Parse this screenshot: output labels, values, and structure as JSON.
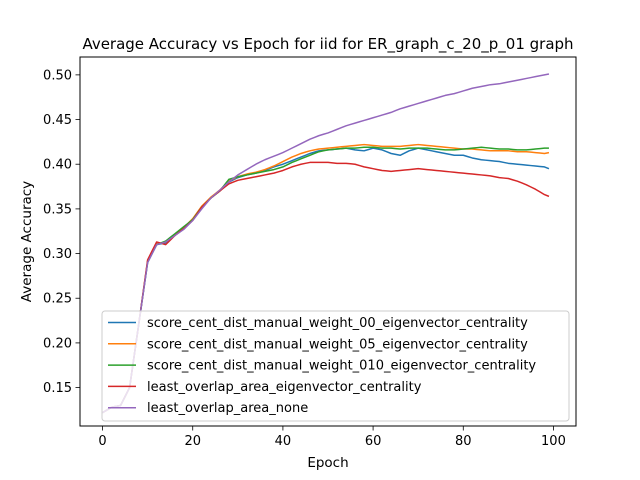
{
  "chart_data": {
    "type": "line",
    "title": "Average Accuracy vs Epoch for iid for ER_graph_c_20_p_01 graph",
    "xlabel": "Epoch",
    "ylabel": "Average Accuracy",
    "xlim": [
      -5,
      105
    ],
    "ylim": [
      0.107,
      0.52
    ],
    "xticks": [
      0,
      20,
      40,
      60,
      80,
      100
    ],
    "yticks": [
      0.15,
      0.2,
      0.25,
      0.3,
      0.35,
      0.4,
      0.45,
      0.5
    ],
    "xtick_labels": [
      "0",
      "20",
      "40",
      "60",
      "80",
      "100"
    ],
    "ytick_labels": [
      "0.15",
      "0.20",
      "0.25",
      "0.30",
      "0.35",
      "0.40",
      "0.45",
      "0.50"
    ],
    "grid": false,
    "legend_position": "lower-left",
    "x_range": {
      "start": 0,
      "end": 99,
      "step": 1
    },
    "series": [
      {
        "name": "score_cent_dist_manual_weight_00_eigenvector_centrality",
        "color": "#1f77b4",
        "keypoints": [
          [
            0,
            0.122
          ],
          [
            2,
            0.128
          ],
          [
            4,
            0.13
          ],
          [
            6,
            0.15
          ],
          [
            8,
            0.22
          ],
          [
            10,
            0.29
          ],
          [
            12,
            0.31
          ],
          [
            14,
            0.312
          ],
          [
            16,
            0.32
          ],
          [
            18,
            0.328
          ],
          [
            20,
            0.338
          ],
          [
            22,
            0.352
          ],
          [
            24,
            0.362
          ],
          [
            26,
            0.37
          ],
          [
            28,
            0.38
          ],
          [
            30,
            0.385
          ],
          [
            32,
            0.388
          ],
          [
            34,
            0.39
          ],
          [
            36,
            0.393
          ],
          [
            38,
            0.397
          ],
          [
            40,
            0.4
          ],
          [
            42,
            0.404
          ],
          [
            44,
            0.408
          ],
          [
            46,
            0.412
          ],
          [
            48,
            0.415
          ],
          [
            50,
            0.416
          ],
          [
            52,
            0.417
          ],
          [
            54,
            0.418
          ],
          [
            56,
            0.416
          ],
          [
            58,
            0.415
          ],
          [
            60,
            0.418
          ],
          [
            62,
            0.416
          ],
          [
            64,
            0.412
          ],
          [
            66,
            0.41
          ],
          [
            68,
            0.415
          ],
          [
            70,
            0.418
          ],
          [
            72,
            0.416
          ],
          [
            74,
            0.414
          ],
          [
            76,
            0.412
          ],
          [
            78,
            0.41
          ],
          [
            80,
            0.41
          ],
          [
            82,
            0.407
          ],
          [
            84,
            0.405
          ],
          [
            86,
            0.404
          ],
          [
            88,
            0.403
          ],
          [
            90,
            0.401
          ],
          [
            92,
            0.4
          ],
          [
            94,
            0.399
          ],
          [
            96,
            0.398
          ],
          [
            98,
            0.397
          ],
          [
            99,
            0.395
          ]
        ]
      },
      {
        "name": "score_cent_dist_manual_weight_05_eigenvector_centrality",
        "color": "#ff7f0e",
        "keypoints": [
          [
            0,
            0.122
          ],
          [
            2,
            0.128
          ],
          [
            4,
            0.13
          ],
          [
            6,
            0.15
          ],
          [
            8,
            0.22
          ],
          [
            10,
            0.292
          ],
          [
            12,
            0.311
          ],
          [
            14,
            0.313
          ],
          [
            16,
            0.321
          ],
          [
            18,
            0.329
          ],
          [
            20,
            0.339
          ],
          [
            22,
            0.353
          ],
          [
            24,
            0.363
          ],
          [
            26,
            0.371
          ],
          [
            28,
            0.381
          ],
          [
            30,
            0.386
          ],
          [
            32,
            0.389
          ],
          [
            34,
            0.391
          ],
          [
            36,
            0.394
          ],
          [
            38,
            0.398
          ],
          [
            40,
            0.403
          ],
          [
            42,
            0.408
          ],
          [
            44,
            0.412
          ],
          [
            46,
            0.415
          ],
          [
            48,
            0.417
          ],
          [
            50,
            0.418
          ],
          [
            52,
            0.419
          ],
          [
            54,
            0.42
          ],
          [
            56,
            0.421
          ],
          [
            58,
            0.422
          ],
          [
            60,
            0.421
          ],
          [
            62,
            0.42
          ],
          [
            64,
            0.42
          ],
          [
            66,
            0.42
          ],
          [
            68,
            0.421
          ],
          [
            70,
            0.422
          ],
          [
            72,
            0.421
          ],
          [
            74,
            0.42
          ],
          [
            76,
            0.419
          ],
          [
            78,
            0.418
          ],
          [
            80,
            0.417
          ],
          [
            82,
            0.417
          ],
          [
            84,
            0.416
          ],
          [
            86,
            0.415
          ],
          [
            88,
            0.415
          ],
          [
            90,
            0.415
          ],
          [
            92,
            0.414
          ],
          [
            94,
            0.414
          ],
          [
            96,
            0.413
          ],
          [
            98,
            0.412
          ],
          [
            99,
            0.413
          ]
        ]
      },
      {
        "name": "score_cent_dist_manual_weight_010_eigenvector_centrality",
        "color": "#2ca02c",
        "keypoints": [
          [
            0,
            0.122
          ],
          [
            2,
            0.128
          ],
          [
            4,
            0.13
          ],
          [
            6,
            0.15
          ],
          [
            8,
            0.22
          ],
          [
            10,
            0.291
          ],
          [
            12,
            0.31
          ],
          [
            14,
            0.314
          ],
          [
            16,
            0.322
          ],
          [
            18,
            0.33
          ],
          [
            20,
            0.338
          ],
          [
            22,
            0.352
          ],
          [
            24,
            0.362
          ],
          [
            26,
            0.37
          ],
          [
            28,
            0.383
          ],
          [
            30,
            0.386
          ],
          [
            32,
            0.388
          ],
          [
            34,
            0.39
          ],
          [
            36,
            0.392
          ],
          [
            38,
            0.394
          ],
          [
            40,
            0.397
          ],
          [
            42,
            0.402
          ],
          [
            44,
            0.406
          ],
          [
            46,
            0.41
          ],
          [
            48,
            0.414
          ],
          [
            50,
            0.416
          ],
          [
            52,
            0.417
          ],
          [
            54,
            0.418
          ],
          [
            56,
            0.418
          ],
          [
            58,
            0.419
          ],
          [
            60,
            0.419
          ],
          [
            62,
            0.418
          ],
          [
            64,
            0.418
          ],
          [
            66,
            0.417
          ],
          [
            68,
            0.418
          ],
          [
            70,
            0.418
          ],
          [
            72,
            0.418
          ],
          [
            74,
            0.417
          ],
          [
            76,
            0.416
          ],
          [
            78,
            0.416
          ],
          [
            80,
            0.417
          ],
          [
            82,
            0.418
          ],
          [
            84,
            0.419
          ],
          [
            86,
            0.418
          ],
          [
            88,
            0.417
          ],
          [
            90,
            0.417
          ],
          [
            92,
            0.416
          ],
          [
            94,
            0.416
          ],
          [
            96,
            0.417
          ],
          [
            98,
            0.418
          ],
          [
            99,
            0.418
          ]
        ]
      },
      {
        "name": "least_overlap_area_eigenvector_centrality",
        "color": "#d62728",
        "keypoints": [
          [
            0,
            0.122
          ],
          [
            2,
            0.128
          ],
          [
            4,
            0.13
          ],
          [
            6,
            0.15
          ],
          [
            8,
            0.22
          ],
          [
            10,
            0.293
          ],
          [
            12,
            0.313
          ],
          [
            14,
            0.31
          ],
          [
            16,
            0.32
          ],
          [
            18,
            0.328
          ],
          [
            20,
            0.337
          ],
          [
            22,
            0.352
          ],
          [
            24,
            0.362
          ],
          [
            26,
            0.37
          ],
          [
            28,
            0.378
          ],
          [
            30,
            0.382
          ],
          [
            32,
            0.384
          ],
          [
            34,
            0.386
          ],
          [
            36,
            0.388
          ],
          [
            38,
            0.39
          ],
          [
            40,
            0.393
          ],
          [
            42,
            0.397
          ],
          [
            44,
            0.4
          ],
          [
            46,
            0.402
          ],
          [
            48,
            0.402
          ],
          [
            50,
            0.402
          ],
          [
            52,
            0.401
          ],
          [
            54,
            0.401
          ],
          [
            56,
            0.4
          ],
          [
            58,
            0.397
          ],
          [
            60,
            0.395
          ],
          [
            62,
            0.393
          ],
          [
            64,
            0.392
          ],
          [
            66,
            0.393
          ],
          [
            68,
            0.394
          ],
          [
            70,
            0.395
          ],
          [
            72,
            0.394
          ],
          [
            74,
            0.393
          ],
          [
            76,
            0.392
          ],
          [
            78,
            0.391
          ],
          [
            80,
            0.39
          ],
          [
            82,
            0.389
          ],
          [
            84,
            0.388
          ],
          [
            86,
            0.387
          ],
          [
            88,
            0.385
          ],
          [
            90,
            0.384
          ],
          [
            92,
            0.381
          ],
          [
            94,
            0.377
          ],
          [
            96,
            0.372
          ],
          [
            98,
            0.366
          ],
          [
            99,
            0.364
          ]
        ]
      },
      {
        "name": "least_overlap_area_none",
        "color": "#9467bd",
        "keypoints": [
          [
            0,
            0.122
          ],
          [
            2,
            0.128
          ],
          [
            4,
            0.13
          ],
          [
            6,
            0.15
          ],
          [
            8,
            0.22
          ],
          [
            10,
            0.29
          ],
          [
            12,
            0.31
          ],
          [
            14,
            0.313
          ],
          [
            16,
            0.32
          ],
          [
            18,
            0.327
          ],
          [
            20,
            0.337
          ],
          [
            22,
            0.35
          ],
          [
            24,
            0.362
          ],
          [
            26,
            0.371
          ],
          [
            28,
            0.38
          ],
          [
            30,
            0.388
          ],
          [
            32,
            0.394
          ],
          [
            34,
            0.4
          ],
          [
            36,
            0.405
          ],
          [
            38,
            0.409
          ],
          [
            40,
            0.413
          ],
          [
            42,
            0.418
          ],
          [
            44,
            0.423
          ],
          [
            46,
            0.428
          ],
          [
            48,
            0.432
          ],
          [
            50,
            0.435
          ],
          [
            52,
            0.439
          ],
          [
            54,
            0.443
          ],
          [
            56,
            0.446
          ],
          [
            58,
            0.449
          ],
          [
            60,
            0.452
          ],
          [
            62,
            0.455
          ],
          [
            64,
            0.458
          ],
          [
            66,
            0.462
          ],
          [
            68,
            0.465
          ],
          [
            70,
            0.468
          ],
          [
            72,
            0.471
          ],
          [
            74,
            0.474
          ],
          [
            76,
            0.477
          ],
          [
            78,
            0.479
          ],
          [
            80,
            0.482
          ],
          [
            82,
            0.485
          ],
          [
            84,
            0.487
          ],
          [
            86,
            0.489
          ],
          [
            88,
            0.49
          ],
          [
            90,
            0.492
          ],
          [
            92,
            0.494
          ],
          [
            94,
            0.496
          ],
          [
            96,
            0.498
          ],
          [
            98,
            0.5
          ],
          [
            99,
            0.501
          ]
        ]
      }
    ]
  }
}
